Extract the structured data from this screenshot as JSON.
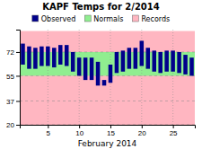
{
  "chart_data": {
    "type": "bar",
    "title": "KAPF Temps for 2/2014",
    "x_label": "February 2014",
    "x": [
      1,
      2,
      3,
      4,
      5,
      6,
      7,
      8,
      9,
      10,
      11,
      12,
      13,
      14,
      15,
      16,
      17,
      18,
      19,
      20,
      21,
      22,
      23,
      24,
      25,
      26,
      27,
      28
    ],
    "series": [
      {
        "name": "Observed",
        "type": "bar",
        "color": "#00008B",
        "low": [
          63,
          60,
          60,
          62,
          62,
          61,
          63,
          62,
          58,
          55,
          52,
          52,
          48,
          48,
          50,
          57,
          58,
          60,
          60,
          62,
          60,
          58,
          57,
          58,
          58,
          57,
          56,
          55
        ],
        "high": [
          78,
          76,
          75,
          76,
          76,
          75,
          77,
          77,
          72,
          68,
          68,
          68,
          65,
          52,
          63,
          72,
          73,
          75,
          75,
          80,
          75,
          73,
          72,
          73,
          73,
          72,
          70,
          68
        ]
      },
      {
        "name": "Normals",
        "type": "area",
        "color": "#90EE90",
        "low": 55,
        "high": 72
      },
      {
        "name": "Records",
        "type": "area",
        "color": "#FFB6C1",
        "low": 20,
        "high": 87
      }
    ],
    "xlim": [
      0.5,
      28.5
    ],
    "xticks": [
      5,
      10,
      15,
      20,
      25
    ],
    "ylim": [
      20,
      88
    ],
    "yticks": [
      20,
      37,
      55,
      72
    ],
    "grid": true
  }
}
